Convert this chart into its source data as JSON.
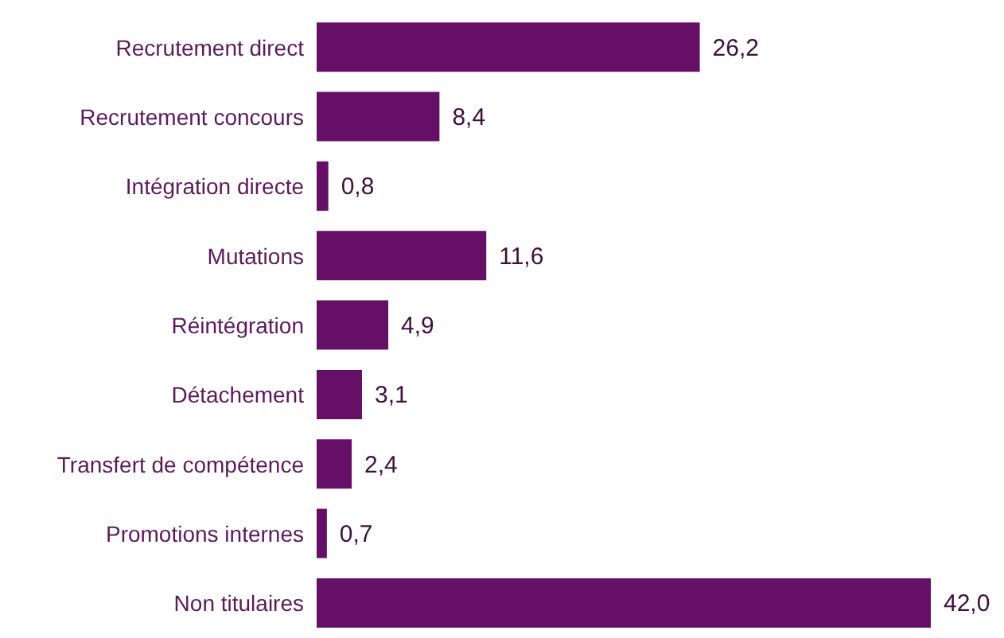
{
  "chart_data": {
    "type": "bar",
    "orientation": "horizontal",
    "categories": [
      "Recrutement direct",
      "Recrutement concours",
      "Intégration directe",
      "Mutations",
      "Réintégration",
      "Détachement",
      "Transfert de compétence",
      "Promotions internes",
      "Non titulaires"
    ],
    "values": [
      26.2,
      8.4,
      0.8,
      11.6,
      4.9,
      3.1,
      2.4,
      0.7,
      42.0
    ],
    "value_labels": [
      "26,2",
      "8,4",
      "0,8",
      "11,6",
      "4,9",
      "3,1",
      "2,4",
      "0,7",
      "42,0"
    ],
    "color": "#660f66",
    "grid": false,
    "legend": false
  }
}
